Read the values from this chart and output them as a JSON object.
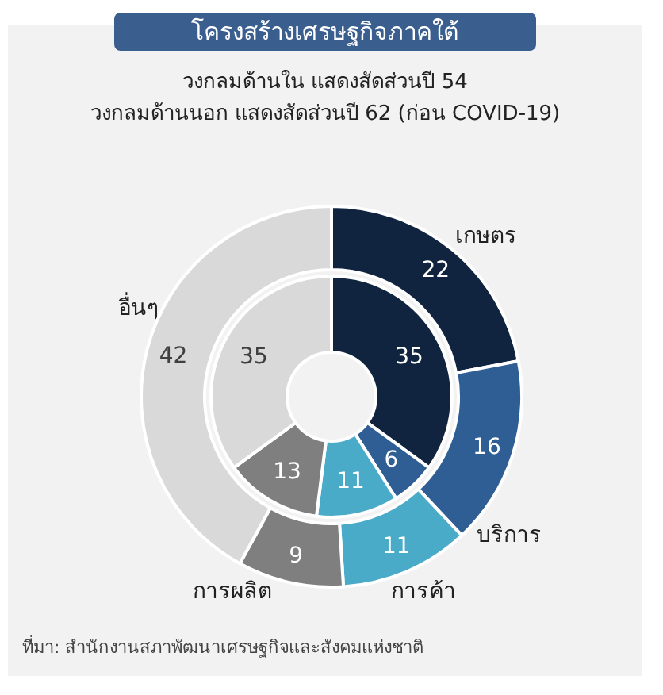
{
  "chart_data": {
    "type": "donut",
    "title": "โครงสร้างเศรษฐกิจภาคใต้",
    "subtitle": "วงกลมด้านใน แสดงสัดส่วนปี 54\nวงกลมด้านนอก แสดงสัดส่วนปี 62 (ก่อน COVID-19)",
    "categories": [
      "เกษตร",
      "บริการ",
      "การค้า",
      "การผลิต",
      "อื่นๆ"
    ],
    "colors": [
      "#10243f",
      "#2f5e94",
      "#4aabc9",
      "#7f7f7f",
      "#d9d9d9"
    ],
    "series": [
      {
        "values": [
          35,
          6,
          11,
          13,
          35
        ]
      },
      {
        "values": [
          22,
          16,
          11,
          9,
          42
        ]
      }
    ],
    "data_labels": true,
    "legend": false,
    "annotations": [
      "ที่มา: สำนักงานสภาพัฒนาเศรษฐกิจและสังคมแห่งชาติ"
    ]
  }
}
